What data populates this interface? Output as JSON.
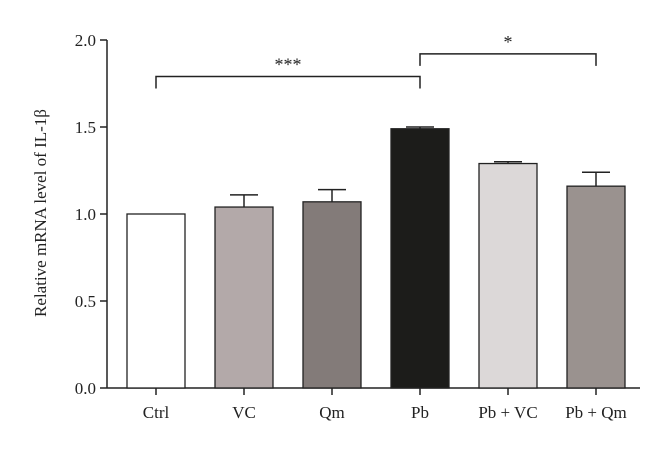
{
  "chart_data": {
    "type": "bar",
    "title": "",
    "xlabel": "",
    "ylabel": "Relative mRNA level of IL-1β",
    "ylim": [
      0,
      2.0
    ],
    "yticks": [
      "0.0",
      "0.5",
      "1.0",
      "1.5",
      "2.0"
    ],
    "grid": false,
    "legend": "none",
    "categories": [
      "Ctrl",
      "VC",
      "Qm",
      "Pb",
      "Pb + VC",
      "Pb + Qm"
    ],
    "values": [
      1.0,
      1.04,
      1.07,
      1.49,
      1.29,
      1.16
    ],
    "errors": [
      0.0,
      0.07,
      0.07,
      0.01,
      0.01,
      0.08
    ],
    "bar_colors": [
      "#ffffff",
      "#b3a9a9",
      "#837b79",
      "#1c1c1a",
      "#dcd8d8",
      "#9a928f"
    ],
    "significance": [
      {
        "from": 0,
        "to": 3,
        "label": "***",
        "y": 1.79
      },
      {
        "from": 3,
        "to": 5,
        "label": "*",
        "y": 1.92
      }
    ]
  }
}
